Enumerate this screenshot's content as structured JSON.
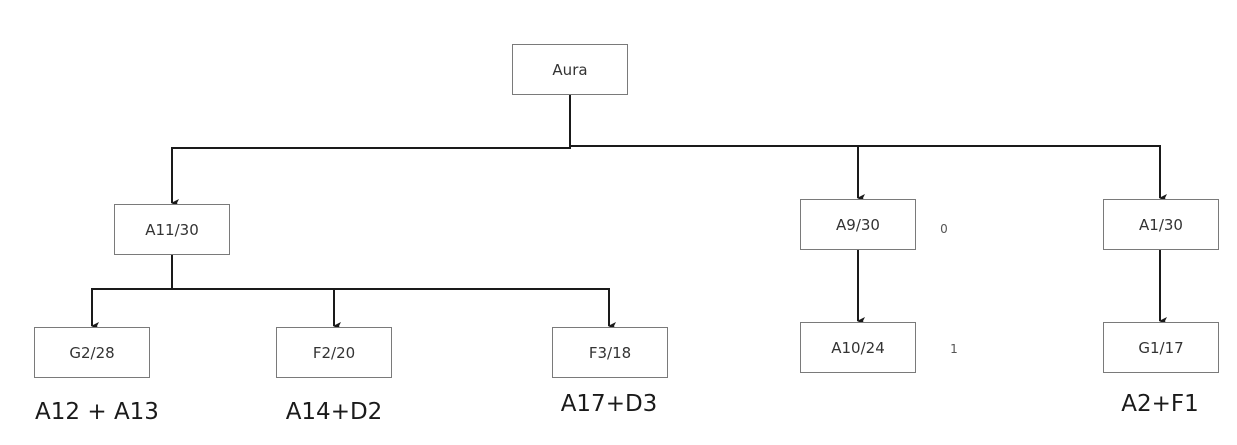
{
  "diagram": {
    "nodes": {
      "aura": "Aura",
      "a11": "A11/30",
      "a9": "A9/30",
      "a1": "A1/30",
      "g2": "G2/28",
      "f2": "F2/20",
      "f3": "F3/18",
      "a10": "A10/24",
      "g1": "G1/17"
    },
    "side_labels": {
      "a9": "0",
      "a10": "1"
    },
    "captions": {
      "g2": "A12 + A13",
      "f2": "A14+D2",
      "f3": "A17+D3",
      "g1": "A2+F1"
    }
  }
}
